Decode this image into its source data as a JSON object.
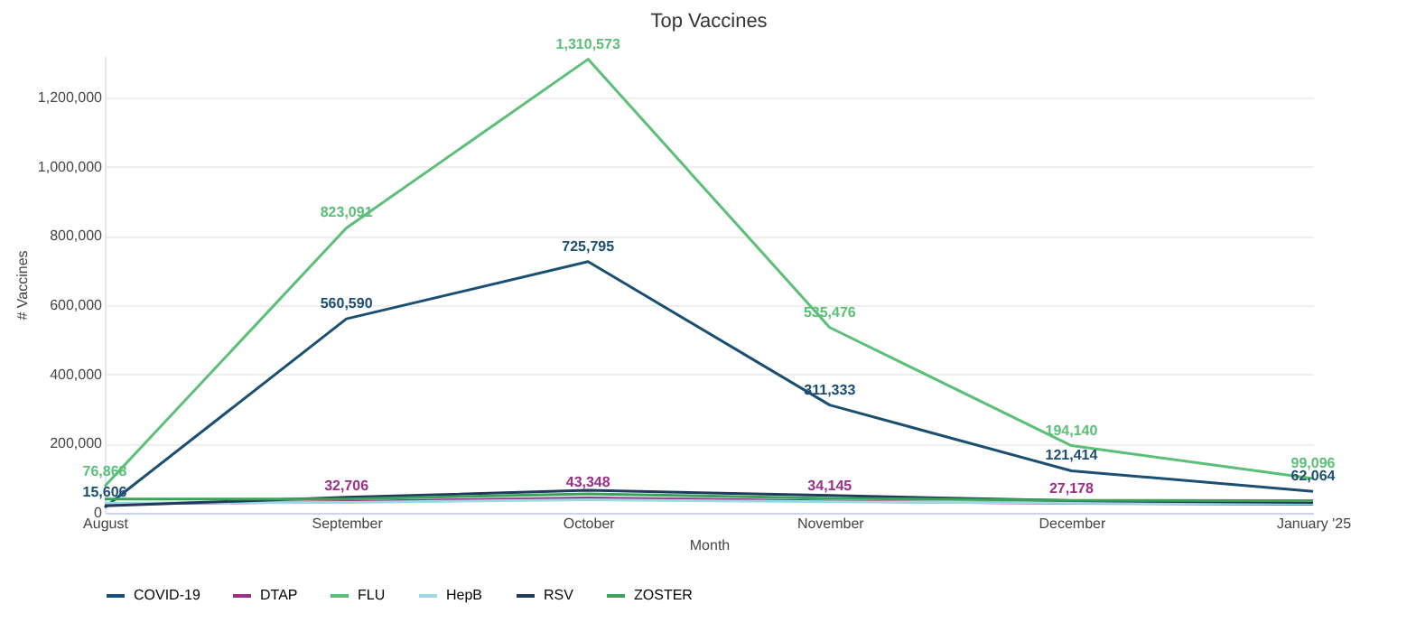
{
  "chart_data": {
    "type": "line",
    "title": "Top Vaccines",
    "xlabel": "Month",
    "ylabel": "# Vaccines",
    "categories": [
      "August",
      "September",
      "October",
      "November",
      "December",
      "January '25"
    ],
    "ylim": [
      0,
      1320000
    ],
    "yticks": [
      0,
      {
        "value": 200000,
        "label": "200,000"
      },
      {
        "value": 400000,
        "label": "400,000"
      },
      {
        "value": 600000,
        "label": "600,000"
      },
      {
        "value": 800000,
        "label": "800,000"
      },
      {
        "value": 1000000,
        "label": "1,000,000"
      },
      {
        "value": 1200000,
        "label": "1,200,000"
      }
    ],
    "grid": "y",
    "legend": "bottom",
    "marker": "none",
    "line_style": "solid",
    "series": [
      {
        "name": "COVID-19",
        "color": "#1b4f72",
        "values": [
          15606,
          560590,
          725795,
          311333,
          121414,
          62064
        ],
        "value_labels": [
          "15,606",
          "560,590",
          "725,795",
          "311,333",
          "121,414",
          "62,064"
        ]
      },
      {
        "name": "DTAP",
        "color": "#9b2f8a",
        "values": [
          25000,
          32706,
          43348,
          34145,
          27178,
          25000
        ],
        "value_labels": [
          null,
          "32,706",
          "43,348",
          "34,145",
          "27,178",
          null
        ]
      },
      {
        "name": "FLU",
        "color": "#5cbf78",
        "values": [
          76868,
          823091,
          1310573,
          535476,
          194140,
          99096
        ],
        "value_labels": [
          "76,868",
          "823,091",
          "1,310,573",
          "535,476",
          "194,140",
          "99,096"
        ]
      },
      {
        "name": "HepB",
        "color": "#9fd8e0",
        "values": [
          28000,
          30000,
          38000,
          32000,
          28000,
          27000
        ]
      },
      {
        "name": "RSV",
        "color": "#1f3a5a",
        "values": [
          20000,
          45000,
          65000,
          50000,
          35000,
          30000
        ]
      },
      {
        "name": "ZOSTER",
        "color": "#3aa35a",
        "values": [
          40000,
          40000,
          55000,
          42000,
          36000,
          35000
        ]
      }
    ]
  }
}
